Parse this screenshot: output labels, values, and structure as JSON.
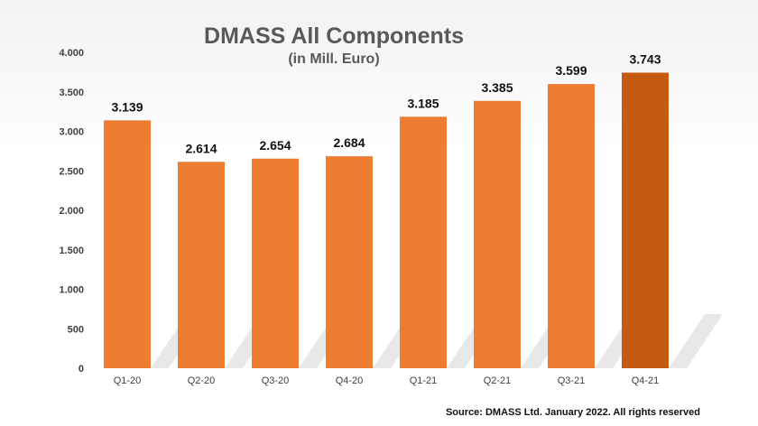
{
  "chart_data": {
    "type": "bar",
    "title": "DMASS All Components",
    "subtitle": "(in Mill. Euro)",
    "xlabel": "",
    "ylabel": "",
    "categories": [
      "Q1-20",
      "Q2-20",
      "Q3-20",
      "Q4-20",
      "Q1-21",
      "Q2-21",
      "Q3-21",
      "Q4-21"
    ],
    "values": [
      3139,
      2614,
      2654,
      2684,
      3185,
      3385,
      3599,
      3743
    ],
    "data_labels": [
      "3.139",
      "2.614",
      "2.654",
      "2.684",
      "3.185",
      "3.385",
      "3.599",
      "3.743"
    ],
    "ylim": [
      0,
      4000
    ],
    "yticks": [
      0,
      500,
      1000,
      1500,
      2000,
      2500,
      3000,
      3500,
      4000
    ],
    "ytick_labels": [
      "0",
      "500",
      "1.000",
      "1.500",
      "2.000",
      "2.500",
      "3.000",
      "3.500",
      "4.000"
    ],
    "grid": false,
    "legend": "none",
    "colors": {
      "bar": "#ed7d31",
      "highlight": "#c55a11"
    },
    "highlight_index": 7
  },
  "source": "Source: DMASS Ltd. January 2022. All rights reserved"
}
